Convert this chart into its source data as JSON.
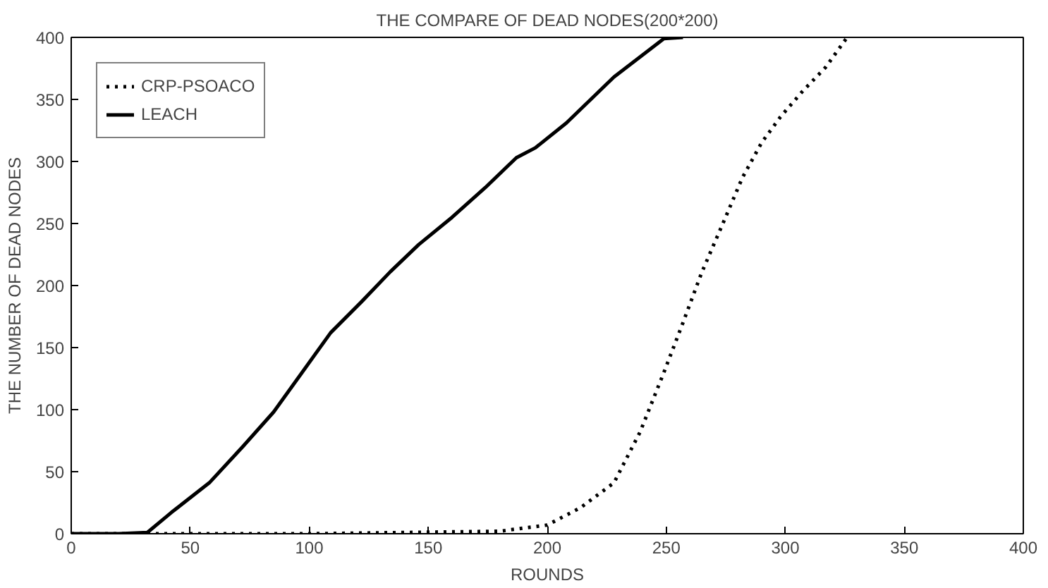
{
  "chart_data": {
    "type": "line",
    "title": "THE COMPARE OF DEAD NODES(200*200)",
    "xlabel": "ROUNDS",
    "ylabel": "THE NUMBER OF DEAD NODES",
    "xlim": [
      0,
      400
    ],
    "ylim": [
      0,
      400
    ],
    "xticks": [
      0,
      50,
      100,
      150,
      200,
      250,
      300,
      350,
      400
    ],
    "yticks": [
      0,
      50,
      100,
      150,
      200,
      250,
      300,
      350,
      400
    ],
    "grid": false,
    "legend": "top left",
    "series": [
      {
        "name": "CRP-PSOACO",
        "color": "#000000",
        "line_style": "dotted",
        "x": [
          0,
          100,
          180,
          200,
          214,
          228,
          239,
          249,
          257,
          265,
          274,
          282,
          290,
          298,
          307,
          317,
          326
        ],
        "values": [
          0,
          0,
          2,
          7,
          21,
          41,
          82,
          130,
          170,
          211,
          251,
          287,
          315,
          336,
          356,
          376,
          400
        ]
      },
      {
        "name": "LEACH",
        "color": "#000000",
        "line_style": "solid",
        "x": [
          0,
          20,
          32,
          42,
          58,
          72,
          85,
          97,
          109,
          122,
          134,
          146,
          160,
          174,
          187,
          195,
          208,
          228,
          249,
          257
        ],
        "values": [
          0,
          0,
          1,
          17,
          41,
          70,
          98,
          130,
          162,
          187,
          211,
          233,
          255,
          279,
          303,
          311,
          331,
          368,
          399,
          400
        ]
      }
    ]
  }
}
